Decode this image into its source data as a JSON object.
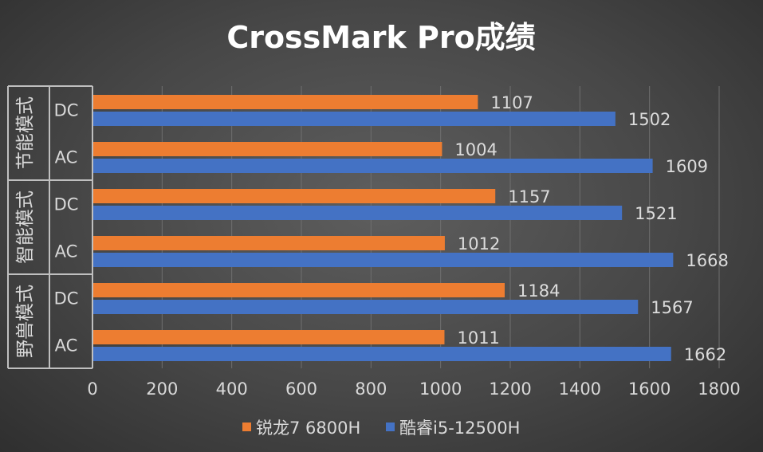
{
  "chart_data": {
    "type": "bar",
    "orientation": "horizontal",
    "title": "CrossMark Pro成绩",
    "groups": [
      {
        "label": "节能模式",
        "categories": [
          "DC",
          "AC"
        ]
      },
      {
        "label": "智能模式",
        "categories": [
          "DC",
          "AC"
        ]
      },
      {
        "label": "野兽模式",
        "categories": [
          "DC",
          "AC"
        ]
      }
    ],
    "series": [
      {
        "name": "锐龙7 6800H",
        "color": "#ed7d31",
        "values": [
          1107,
          1004,
          1157,
          1012,
          1184,
          1011
        ]
      },
      {
        "name": "酷睿i5-12500H",
        "color": "#4472c4",
        "values": [
          1502,
          1609,
          1521,
          1668,
          1567,
          1662
        ]
      }
    ],
    "xlim": [
      0,
      1800
    ],
    "xticks": [
      0,
      200,
      400,
      600,
      800,
      1000,
      1200,
      1400,
      1600,
      1800
    ],
    "grid": true,
    "legend_position": "bottom",
    "data_labels": true
  }
}
